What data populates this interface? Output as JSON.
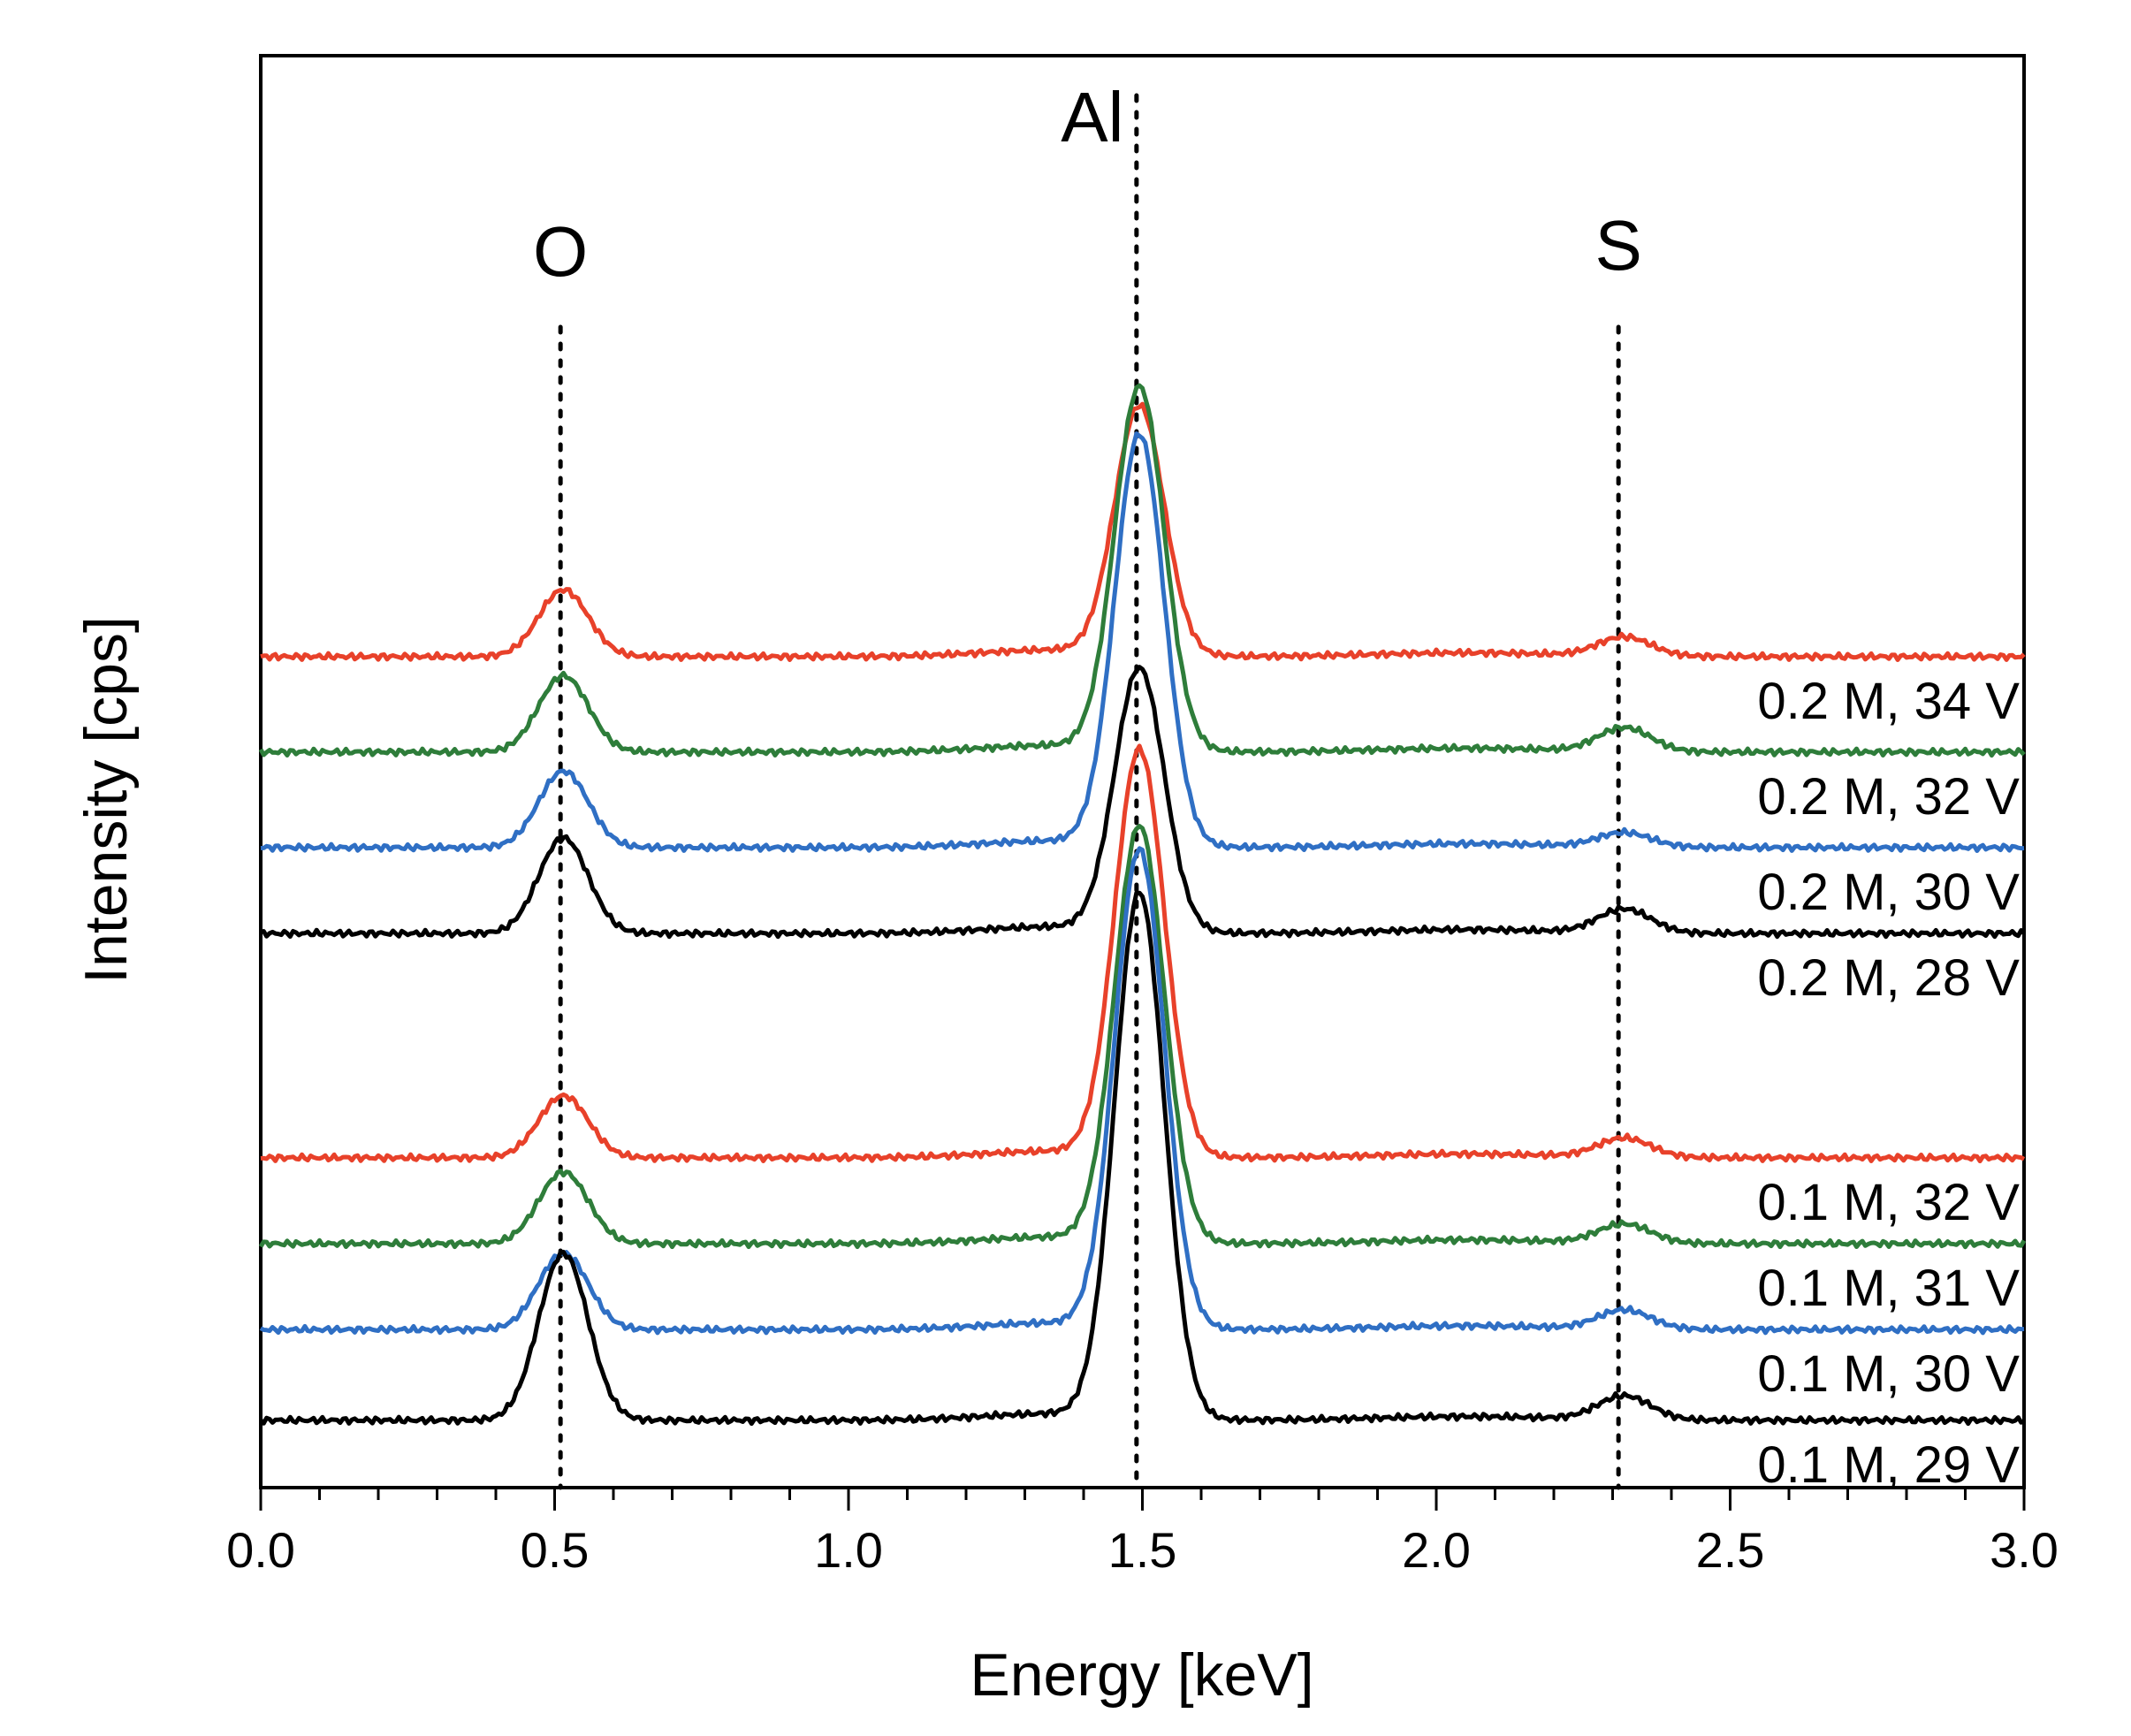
{
  "chart_data": {
    "type": "line",
    "xlabel": "Energy [keV]",
    "ylabel": "Intensity [cps]",
    "xlim": [
      0.0,
      3.0
    ],
    "x_ticks": [
      "0.0",
      "0.5",
      "1.0",
      "1.5",
      "2.0",
      "2.5",
      "3.0"
    ],
    "y_ticks_shown": false,
    "grid": false,
    "peaks": [
      {
        "label": "O",
        "energy": 0.51
      },
      {
        "label": "Al",
        "energy": 1.49
      },
      {
        "label": "S",
        "energy": 2.31
      }
    ],
    "series": [
      {
        "name": "0.2 M, 34 V",
        "color": "#e8412a",
        "baseline": 11.8,
        "o": 1.4,
        "al": 5.2,
        "s": 0.4
      },
      {
        "name": "0.2 M, 32 V",
        "color": "#2e7d3a",
        "baseline": 9.8,
        "o": 1.6,
        "al": 7.6,
        "s": 0.5
      },
      {
        "name": "0.2 M, 30 V",
        "color": "#2f6fc4",
        "baseline": 7.8,
        "o": 1.6,
        "al": 8.6,
        "s": 0.3
      },
      {
        "name": "0.2 M, 28 V",
        "color": "#000000",
        "baseline": 6.0,
        "o": 2.0,
        "al": 5.5,
        "s": 0.5
      },
      {
        "name": "0.1 M, 32 V",
        "color": "#e8412a",
        "baseline": 1.3,
        "o": 1.3,
        "al": 8.5,
        "s": 0.4
      },
      {
        "name": "0.1 M, 31 V",
        "color": "#2e7d3a",
        "baseline": -0.5,
        "o": 1.5,
        "al": 8.7,
        "s": 0.4
      },
      {
        "name": "0.1 M, 30 V",
        "color": "#2f6fc4",
        "baseline": -2.3,
        "o": 1.6,
        "al": 10.0,
        "s": 0.4
      },
      {
        "name": "0.1 M, 29 V",
        "color": "#000000",
        "baseline": -4.2,
        "o": 3.5,
        "al": 11.0,
        "s": 0.5
      }
    ]
  }
}
